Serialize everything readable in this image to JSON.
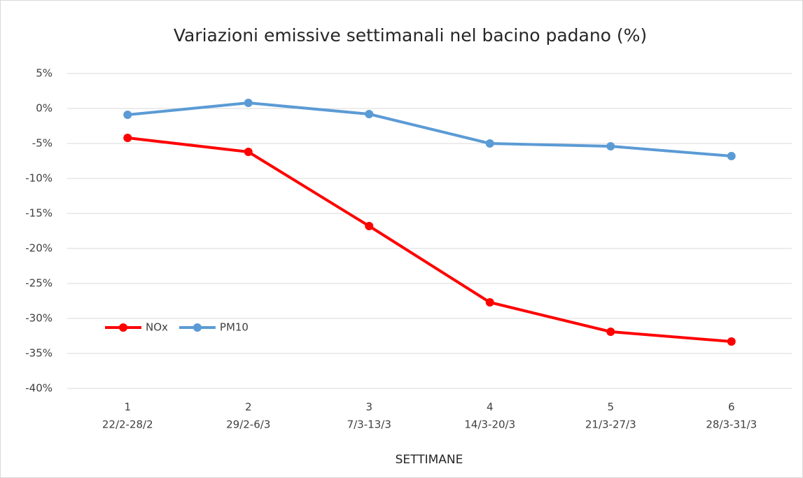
{
  "chart_data": {
    "type": "line",
    "title": "Variazioni emissive settimanali nel bacino padano (%)",
    "x_label": "SETTIMANE",
    "categories": [
      [
        "1",
        "22/2-28/2"
      ],
      [
        "2",
        "29/2-6/3"
      ],
      [
        "3",
        "7/3-13/3"
      ],
      [
        "4",
        "14/3-20/3"
      ],
      [
        "5",
        "21/3-27/3"
      ],
      [
        "6",
        "28/3-31/3"
      ]
    ],
    "series": [
      {
        "name": "NOx",
        "color": "#ff0000",
        "values": [
          -4.2,
          -6.2,
          -16.8,
          -27.7,
          -31.9,
          -33.3
        ]
      },
      {
        "name": "PM10",
        "color": "#5b9bd5",
        "values": [
          -0.9,
          0.8,
          -0.8,
          -5.0,
          -5.4,
          -6.8
        ]
      }
    ],
    "ylim": [
      -40,
      5
    ],
    "yticks": [
      {
        "value": -40,
        "label": "-40%"
      },
      {
        "value": -35,
        "label": "-35%"
      },
      {
        "value": -30,
        "label": "-30%"
      },
      {
        "value": -25,
        "label": "-25%"
      },
      {
        "value": -20,
        "label": "-20%"
      },
      {
        "value": -15,
        "label": "-15%"
      },
      {
        "value": -10,
        "label": "-10%"
      },
      {
        "value": -5,
        "label": "-5%"
      },
      {
        "value": 0,
        "label": "0%"
      },
      {
        "value": 5,
        "label": "5%"
      }
    ],
    "grid": true,
    "legend_position": "lower left"
  }
}
